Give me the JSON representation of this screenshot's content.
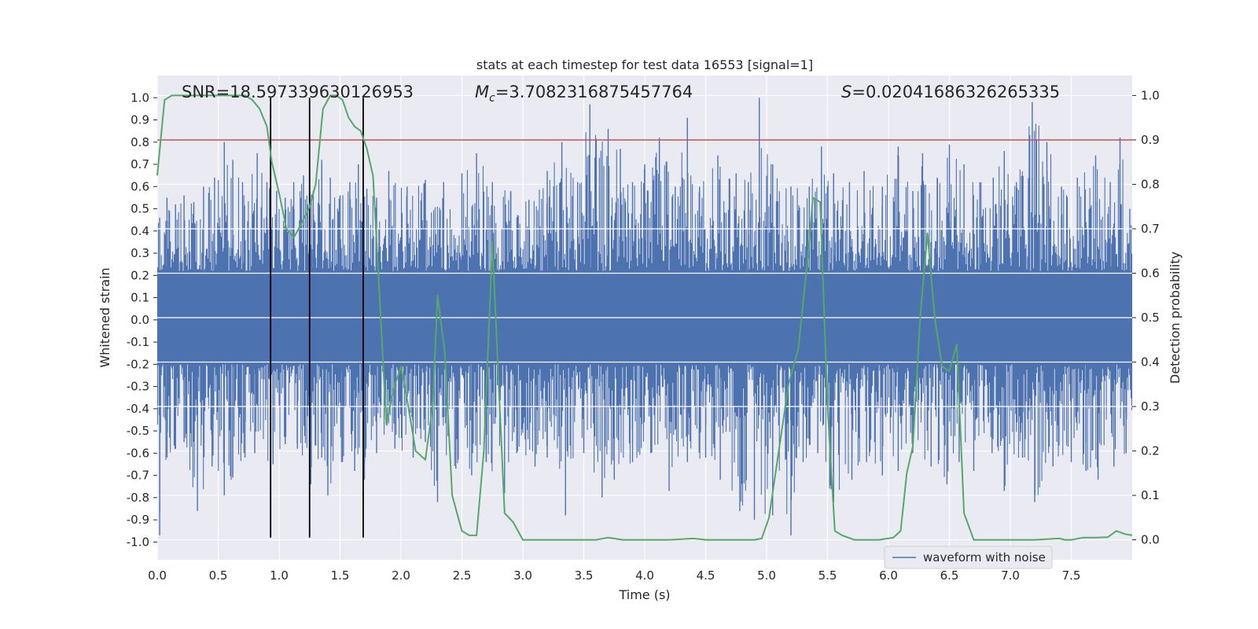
{
  "chart_data": {
    "type": "line",
    "title": "stats at each timestep for test data 16553 [signal=1]",
    "xlabel": "Time (s)",
    "ylabel": "Whitened strain",
    "y2label": "Detection probability",
    "xlim": [
      0.0,
      8.0
    ],
    "ylim": [
      -1.08,
      1.1
    ],
    "y2lim": [
      -0.045,
      1.045
    ],
    "x_ticks": [
      "0.0",
      "0.5",
      "1.0",
      "1.5",
      "2.0",
      "2.5",
      "3.0",
      "3.5",
      "4.0",
      "4.5",
      "5.0",
      "5.5",
      "6.0",
      "6.5",
      "7.0",
      "7.5"
    ],
    "y_ticks": [
      "1.0",
      "0.9",
      "0.8",
      "0.7",
      "0.6",
      "0.5",
      "0.4",
      "0.3",
      "0.2",
      "0.1",
      "0.0",
      "-0.1",
      "-0.2",
      "-0.3",
      "-0.4",
      "-0.5",
      "-0.6",
      "-0.7",
      "-0.8",
      "-0.9",
      "-1.0"
    ],
    "y2_ticks": [
      "1.0",
      "0.9",
      "0.8",
      "0.7",
      "0.6",
      "0.5",
      "0.4",
      "0.3",
      "0.2",
      "0.1",
      "0.0"
    ],
    "grid": true,
    "legend_position": "lower-right",
    "annotations": {
      "snr": "SNR=18.597339630126953",
      "mc_symbol": "M",
      "mc_sub": "c",
      "mc_value": "=3.7082316875457764",
      "s_symbol": "S",
      "s_value": "=0.02041686326265335"
    },
    "threshold_line": {
      "y2": 0.9,
      "color": "#c44e52"
    },
    "vertical_markers": {
      "x": [
        0.93,
        1.25,
        1.69
      ],
      "y_range": [
        -0.98,
        1.0
      ],
      "color": "#000000"
    },
    "series": [
      {
        "name": "waveform with noise",
        "color": "#4c72b0",
        "envelope_note": "dense noisy waveform; samples describe upper and lower spike peaks",
        "top_peaks": [
          [
            0.02,
            0.46
          ],
          [
            0.08,
            0.55
          ],
          [
            0.15,
            0.52
          ],
          [
            0.22,
            0.56
          ],
          [
            0.3,
            0.53
          ],
          [
            0.38,
            0.6
          ],
          [
            0.47,
            0.64
          ],
          [
            0.55,
            0.8
          ],
          [
            0.62,
            0.72
          ],
          [
            0.7,
            0.62
          ],
          [
            0.82,
            0.75
          ],
          [
            0.9,
            0.62
          ],
          [
            0.98,
            0.58
          ],
          [
            1.05,
            0.55
          ],
          [
            1.12,
            0.62
          ],
          [
            1.2,
            0.65
          ],
          [
            1.28,
            0.58
          ],
          [
            1.35,
            0.72
          ],
          [
            1.42,
            0.64
          ],
          [
            1.5,
            0.56
          ],
          [
            1.58,
            0.62
          ],
          [
            1.65,
            0.7
          ],
          [
            1.72,
            0.59
          ],
          [
            1.8,
            0.55
          ],
          [
            1.9,
            0.67
          ],
          [
            2.05,
            0.6
          ],
          [
            2.2,
            0.63
          ],
          [
            2.35,
            0.62
          ],
          [
            2.5,
            0.66
          ],
          [
            2.62,
            0.75
          ],
          [
            2.75,
            0.62
          ],
          [
            2.9,
            0.58
          ],
          [
            3.05,
            0.54
          ],
          [
            3.2,
            0.67
          ],
          [
            3.32,
            0.8
          ],
          [
            3.45,
            0.62
          ],
          [
            3.55,
            0.97
          ],
          [
            3.7,
            0.86
          ],
          [
            3.8,
            0.77
          ],
          [
            3.9,
            0.62
          ],
          [
            4.0,
            0.7
          ],
          [
            4.12,
            0.82
          ],
          [
            4.25,
            0.6
          ],
          [
            4.35,
            0.91
          ],
          [
            4.45,
            0.6
          ],
          [
            4.6,
            0.74
          ],
          [
            4.75,
            0.66
          ],
          [
            4.85,
            0.62
          ],
          [
            4.94,
            1.0
          ],
          [
            5.05,
            0.7
          ],
          [
            5.2,
            0.6
          ],
          [
            5.35,
            0.6
          ],
          [
            5.45,
            0.78
          ],
          [
            5.55,
            0.66
          ],
          [
            5.68,
            0.62
          ],
          [
            5.8,
            0.67
          ],
          [
            5.95,
            0.6
          ],
          [
            6.08,
            0.78
          ],
          [
            6.2,
            0.58
          ],
          [
            6.28,
            0.75
          ],
          [
            6.4,
            0.64
          ],
          [
            6.5,
            0.79
          ],
          [
            6.62,
            0.7
          ],
          [
            6.75,
            0.62
          ],
          [
            6.86,
            0.64
          ],
          [
            6.95,
            0.76
          ],
          [
            7.05,
            0.62
          ],
          [
            7.18,
            0.98
          ],
          [
            7.3,
            0.8
          ],
          [
            7.42,
            0.6
          ],
          [
            7.55,
            0.64
          ],
          [
            7.7,
            0.74
          ],
          [
            7.82,
            0.62
          ],
          [
            7.9,
            0.82
          ],
          [
            7.98,
            0.5
          ]
        ],
        "bottom_peaks": [
          [
            0.02,
            -0.97
          ],
          [
            0.08,
            -0.62
          ],
          [
            0.15,
            -0.58
          ],
          [
            0.22,
            -0.55
          ],
          [
            0.33,
            -0.86
          ],
          [
            0.45,
            -0.66
          ],
          [
            0.55,
            -0.79
          ],
          [
            0.62,
            -0.71
          ],
          [
            0.72,
            -0.62
          ],
          [
            0.8,
            -0.6
          ],
          [
            0.95,
            -0.65
          ],
          [
            1.05,
            -0.56
          ],
          [
            1.15,
            -0.58
          ],
          [
            1.26,
            -0.74
          ],
          [
            1.35,
            -0.62
          ],
          [
            1.4,
            -0.79
          ],
          [
            1.52,
            -0.64
          ],
          [
            1.62,
            -0.68
          ],
          [
            1.7,
            -0.72
          ],
          [
            1.8,
            -0.6
          ],
          [
            1.95,
            -0.58
          ],
          [
            2.1,
            -0.62
          ],
          [
            2.2,
            -0.55
          ],
          [
            2.3,
            -0.82
          ],
          [
            2.45,
            -0.67
          ],
          [
            2.58,
            -0.7
          ],
          [
            2.7,
            -0.64
          ],
          [
            2.85,
            -0.78
          ],
          [
            2.95,
            -0.6
          ],
          [
            3.1,
            -0.66
          ],
          [
            3.2,
            -0.62
          ],
          [
            3.35,
            -0.88
          ],
          [
            3.5,
            -0.6
          ],
          [
            3.65,
            -0.8
          ],
          [
            3.75,
            -0.72
          ],
          [
            3.9,
            -0.64
          ],
          [
            4.05,
            -0.6
          ],
          [
            4.2,
            -0.77
          ],
          [
            4.35,
            -0.64
          ],
          [
            4.5,
            -0.62
          ],
          [
            4.62,
            -0.72
          ],
          [
            4.78,
            -0.86
          ],
          [
            4.9,
            -0.9
          ],
          [
            5.05,
            -0.88
          ],
          [
            5.2,
            -0.97
          ],
          [
            5.3,
            -0.64
          ],
          [
            5.42,
            -0.6
          ],
          [
            5.55,
            -0.82
          ],
          [
            5.7,
            -0.72
          ],
          [
            5.82,
            -0.64
          ],
          [
            5.95,
            -0.7
          ],
          [
            6.08,
            -0.68
          ],
          [
            6.2,
            -0.6
          ],
          [
            6.35,
            -0.66
          ],
          [
            6.48,
            -0.74
          ],
          [
            6.58,
            -0.64
          ],
          [
            6.7,
            -0.68
          ],
          [
            6.85,
            -0.6
          ],
          [
            6.95,
            -0.77
          ],
          [
            7.1,
            -0.62
          ],
          [
            7.2,
            -0.82
          ],
          [
            7.35,
            -0.66
          ],
          [
            7.5,
            -0.64
          ],
          [
            7.62,
            -0.68
          ],
          [
            7.72,
            -0.72
          ],
          [
            7.85,
            -0.66
          ],
          [
            7.95,
            -0.6
          ]
        ]
      },
      {
        "color": "#55a868",
        "axis": "right",
        "x": [
          0.0,
          0.06,
          0.12,
          0.2,
          0.5,
          0.72,
          0.78,
          0.84,
          0.9,
          0.94,
          1.0,
          1.06,
          1.12,
          1.18,
          1.25,
          1.3,
          1.36,
          1.42,
          1.47,
          1.52,
          1.57,
          1.62,
          1.67,
          1.72,
          1.77,
          1.82,
          1.88,
          1.94,
          2.0,
          2.06,
          2.12,
          2.2,
          2.26,
          2.3,
          2.36,
          2.42,
          2.5,
          2.56,
          2.62,
          2.68,
          2.75,
          2.8,
          2.85,
          2.92,
          3.0,
          3.06,
          3.12,
          3.18,
          3.3,
          3.6,
          3.7,
          3.82,
          3.95,
          4.2,
          4.4,
          4.5,
          4.6,
          4.9,
          4.96,
          5.02,
          5.1,
          5.18,
          5.26,
          5.34,
          5.38,
          5.44,
          5.5,
          5.56,
          5.62,
          5.72,
          5.82,
          5.92,
          6.04,
          6.1,
          6.15,
          6.2,
          6.26,
          6.32,
          6.38,
          6.44,
          6.5,
          6.56,
          6.62,
          6.7,
          6.8,
          7.0,
          7.2,
          7.4,
          7.45,
          7.5,
          7.6,
          7.7,
          7.8,
          7.87,
          7.94,
          8.0
        ],
        "y": [
          0.82,
          0.99,
          1.0,
          1.0,
          1.0,
          1.0,
          0.99,
          0.97,
          0.93,
          0.85,
          0.78,
          0.7,
          0.68,
          0.71,
          0.75,
          0.8,
          0.97,
          1.0,
          1.0,
          0.99,
          0.95,
          0.93,
          0.92,
          0.88,
          0.82,
          0.57,
          0.26,
          0.34,
          0.39,
          0.3,
          0.2,
          0.18,
          0.3,
          0.55,
          0.42,
          0.1,
          0.02,
          0.01,
          0.01,
          0.2,
          0.67,
          0.36,
          0.06,
          0.04,
          0.0,
          0.0,
          0.0,
          0.0,
          0.0,
          0.0,
          0.005,
          0.0,
          0.0,
          0.0,
          0.003,
          0.0,
          0.0,
          0.0,
          0.003,
          0.05,
          0.2,
          0.35,
          0.43,
          0.64,
          0.77,
          0.76,
          0.3,
          0.02,
          0.01,
          0.0,
          0.0,
          0.0,
          0.005,
          0.02,
          0.15,
          0.21,
          0.5,
          0.69,
          0.5,
          0.39,
          0.38,
          0.44,
          0.06,
          0.0,
          0.0,
          0.0,
          0.0,
          0.003,
          0.0,
          0.0,
          0.005,
          0.005,
          0.006,
          0.02,
          0.013,
          0.01
        ]
      }
    ]
  }
}
